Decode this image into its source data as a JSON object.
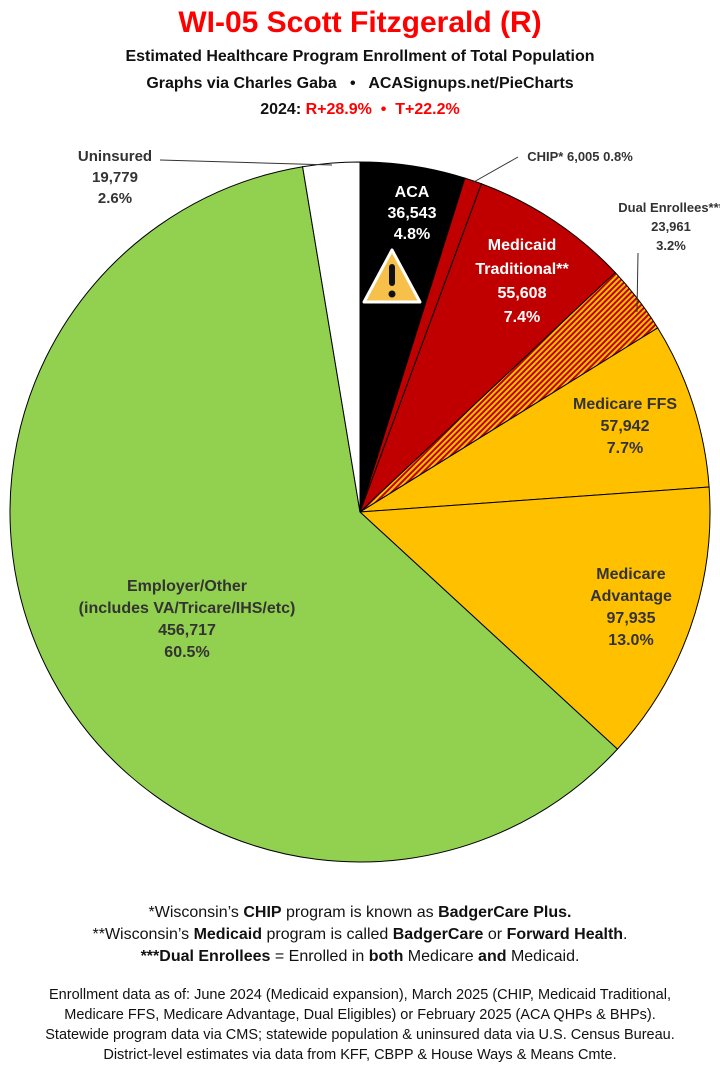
{
  "header": {
    "title": "WI-05 Scott Fitzgerald (R)",
    "subtitle": "Estimated Healthcare Program Enrollment of Total Population",
    "credit": "Graphs via Charles Gaba   •   ACASignups.net/PieCharts",
    "margin_prefix": "2024: ",
    "margin_values": "R+28.9%  •  T+22.2%"
  },
  "chart_data": {
    "type": "pie",
    "start": "12 o'clock, clockwise",
    "slices": [
      {
        "name": "ACA",
        "value": 36543,
        "pct": "4.8%",
        "color": "#000000"
      },
      {
        "name": "CHIP*",
        "value": 6005,
        "pct": "0.8%",
        "color": "#c00000"
      },
      {
        "name": "Medicaid Traditional**",
        "value": 55608,
        "pct": "7.4%",
        "color": "#c00000"
      },
      {
        "name": "Dual Enrollees***",
        "value": 23961,
        "pct": "3.2%",
        "color": "hatched #c00000/#ffc000"
      },
      {
        "name": "Medicare FFS",
        "value": 57942,
        "pct": "7.7%",
        "color": "#ffc000"
      },
      {
        "name": "Medicare Advantage",
        "value": 97935,
        "pct": "13.0%",
        "color": "#ffc000"
      },
      {
        "name": "Employer/Other (includes VA/Tricare/IHS/etc)",
        "value": 456717,
        "pct": "60.5%",
        "color": "#92d050"
      },
      {
        "name": "Uninsured",
        "value": 19779,
        "pct": "2.6%",
        "color": "#ffffff"
      }
    ],
    "labels": {
      "aca": [
        "ACA",
        "36,543",
        "4.8%"
      ],
      "chip": "CHIP* 6,005 0.8%",
      "medicaid": [
        "Medicaid",
        "Traditional**",
        "55,608",
        "7.4%"
      ],
      "dual": [
        "Dual Enrollees***",
        "23,961",
        "3.2%"
      ],
      "ffs": [
        "Medicare FFS",
        "57,942",
        "7.7%"
      ],
      "ma": [
        "Medicare",
        "Advantage",
        "97,935",
        "13.0%"
      ],
      "employer": [
        "Employer/Other",
        "(includes VA/Tricare/IHS/etc)",
        "456,717",
        "60.5%"
      ],
      "uninsured": [
        "Uninsured",
        "19,779",
        "2.6%"
      ]
    },
    "icon": "warning-icon"
  },
  "footnotes": [
    [
      [
        "*Wisconsin’s ",
        0
      ],
      [
        "CHIP",
        1
      ],
      [
        " program is known as ",
        0
      ],
      [
        "BadgerCare Plus.",
        1
      ]
    ],
    [
      [
        "**Wisconsin’s ",
        0
      ],
      [
        "Medicaid",
        1
      ],
      [
        " program is called ",
        0
      ],
      [
        "BadgerCare",
        1
      ],
      [
        " or ",
        0
      ],
      [
        "Forward Health",
        1
      ],
      [
        ".",
        0
      ]
    ],
    [
      [
        "***Dual Enrollees",
        1
      ],
      [
        " = Enrolled in ",
        0
      ],
      [
        "both",
        1
      ],
      [
        " Medicare ",
        0
      ],
      [
        "and",
        1
      ],
      [
        " Medicaid.",
        0
      ]
    ]
  ],
  "notes": [
    "Enrollment data as of: June 2024 (Medicaid expansion), March 2025 (CHIP, Medicaid Traditional,",
    "Medicare FFS, Medicare Advantage, Dual Eligibles) or February 2025 (ACA QHPs & BHPs).",
    "Statewide program data via CMS; statewide population & uninsured data via U.S. Census Bureau.",
    "District-level estimates via data from KFF, CBPP & House Ways & Means Cmte."
  ]
}
